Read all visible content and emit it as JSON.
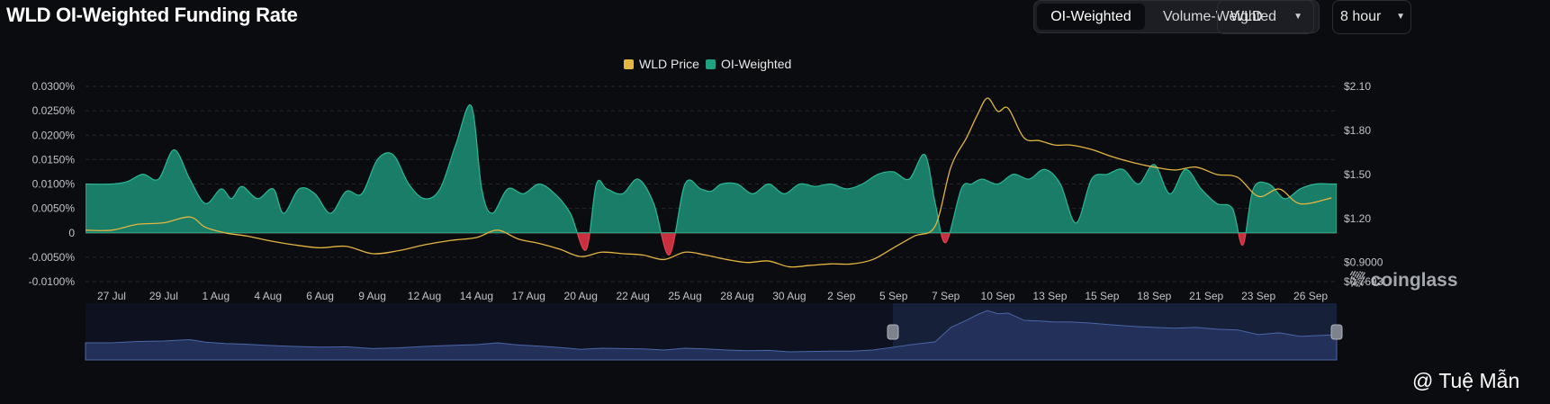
{
  "header": {
    "title": "WLD OI-Weighted Funding Rate"
  },
  "controls": {
    "weighting_options": [
      "OI-Weighted",
      "Volume-Weighted"
    ],
    "weighting_selected": "OI-Weighted",
    "symbol": "WLD",
    "interval": "8 hour",
    "dropdown_icon": "chevron-down-icon"
  },
  "watermark": "coinglass",
  "credit": "@ Tuệ Mẫn",
  "colors": {
    "price": "#e3b541",
    "positive": "#1fa080",
    "negative": "#e2404f",
    "background": "#0b0c0f",
    "navigator": "#4b67a8"
  },
  "chart_data": {
    "type": "area",
    "legend": [
      {
        "name": "WLD Price",
        "color": "#e3b541"
      },
      {
        "name": "OI-Weighted",
        "color": "#1fa080"
      }
    ],
    "legend_position": "top-center",
    "x_labels": [
      "27 Jul",
      "29 Jul",
      "1 Aug",
      "4 Aug",
      "6 Aug",
      "9 Aug",
      "12 Aug",
      "14 Aug",
      "17 Aug",
      "20 Aug",
      "22 Aug",
      "25 Aug",
      "28 Aug",
      "30 Aug",
      "2 Sep",
      "5 Sep",
      "7 Sep",
      "10 Sep",
      "13 Sep",
      "15 Sep",
      "18 Sep",
      "21 Sep",
      "23 Sep",
      "26 Sep"
    ],
    "y_left_ticks": [
      "0.0300%",
      "0.0250%",
      "0.0200%",
      "0.0150%",
      "0.0100%",
      "0.0050%",
      "0",
      "-0.0050%",
      "-0.0100%"
    ],
    "y_right_ticks": [
      "$2.10",
      "$1.80",
      "$1.50",
      "$1.20",
      "$0.9000",
      "$0.7693"
    ],
    "ylim_funding_pct": [
      -0.01,
      0.03
    ],
    "ylim_price": [
      0.7693,
      2.1
    ],
    "grid": true,
    "series": [
      {
        "name": "OI-Weighted",
        "unit": "%",
        "x": [
          0,
          0.3,
          0.6,
          0.9,
          1.2,
          1.5,
          1.8,
          2.1,
          2.3,
          2.5,
          2.8,
          3.1,
          3.3,
          3.6,
          3.9,
          4.2,
          4.5,
          4.8,
          5.1,
          5.4,
          5.7,
          6.0,
          6.3,
          6.6,
          6.9,
          7.1,
          7.3,
          7.6,
          7.9,
          8.2,
          8.5,
          8.8,
          9.1,
          9.3,
          9.5,
          9.8,
          10.1,
          10.4,
          10.7,
          11.0,
          11.3,
          11.5,
          11.7,
          12.0,
          12.3,
          12.6,
          12.9,
          13.2,
          13.5,
          13.8,
          14.1,
          14.4,
          14.7,
          15.0,
          15.3,
          15.6,
          15.8,
          16.0,
          16.3,
          16.5,
          16.7,
          17.0,
          17.3,
          17.6,
          17.9,
          18.2,
          18.5,
          18.8,
          19.1,
          19.4,
          19.7,
          20.0,
          20.3,
          20.6,
          20.9,
          21.2,
          21.5,
          21.7,
          21.9,
          22.2,
          22.5,
          22.8,
          23.1,
          23.4
        ],
        "values": [
          0.01,
          0.0105,
          0.012,
          0.011,
          0.017,
          0.011,
          0.006,
          0.009,
          0.007,
          0.0095,
          0.007,
          0.009,
          0.004,
          0.009,
          0.008,
          0.004,
          0.0085,
          0.008,
          0.015,
          0.016,
          0.01,
          0.007,
          0.009,
          0.018,
          0.026,
          0.009,
          0.004,
          0.009,
          0.008,
          0.01,
          0.008,
          0.004,
          -0.0035,
          0.01,
          0.009,
          0.008,
          0.011,
          0.006,
          -0.0045,
          0.01,
          0.009,
          0.0085,
          0.01,
          0.01,
          0.008,
          0.01,
          0.008,
          0.01,
          0.0095,
          0.01,
          0.009,
          0.01,
          0.012,
          0.0125,
          0.011,
          0.016,
          0.006,
          -0.002,
          0.009,
          0.01,
          0.011,
          0.01,
          0.012,
          0.011,
          0.013,
          0.01,
          0.002,
          0.011,
          0.012,
          0.013,
          0.01,
          0.014,
          0.008,
          0.013,
          0.009,
          0.006,
          0.005,
          -0.0025,
          0.009,
          0.01,
          0.007,
          0.009,
          0.01,
          0.01
        ]
      },
      {
        "name": "WLD Price",
        "unit": "$",
        "x": [
          0,
          0.5,
          1.0,
          1.5,
          1.8,
          2.2,
          2.6,
          3.0,
          3.5,
          4.0,
          4.5,
          5.0,
          5.5,
          6.0,
          6.5,
          7.0,
          7.4,
          7.8,
          8.2,
          8.6,
          9.0,
          9.4,
          9.8,
          10.2,
          10.6,
          11.0,
          11.4,
          11.8,
          12.2,
          12.6,
          13.0,
          13.4,
          13.8,
          14.2,
          14.6,
          15.0,
          15.4,
          15.8,
          16.1,
          16.4,
          16.6,
          16.8,
          17.0,
          17.2,
          17.5,
          17.8,
          18.1,
          18.4,
          18.8,
          19.2,
          19.6,
          20.0,
          20.4,
          20.8,
          21.2,
          21.6,
          22.0,
          22.4,
          22.8,
          23.4
        ],
        "values": [
          1.12,
          1.16,
          1.17,
          1.21,
          1.14,
          1.1,
          1.08,
          1.05,
          1.02,
          1.0,
          1.01,
          0.96,
          0.98,
          1.02,
          1.05,
          1.07,
          1.12,
          1.06,
          1.03,
          0.99,
          0.94,
          0.97,
          0.96,
          0.95,
          0.92,
          0.97,
          0.95,
          0.92,
          0.9,
          0.91,
          0.87,
          0.88,
          0.89,
          0.89,
          0.92,
          1.0,
          1.08,
          1.15,
          1.55,
          1.75,
          1.9,
          2.02,
          1.93,
          1.95,
          1.75,
          1.73,
          1.7,
          1.7,
          1.67,
          1.62,
          1.58,
          1.55,
          1.53,
          1.55,
          1.5,
          1.48,
          1.35,
          1.4,
          1.3,
          1.34
        ]
      }
    ]
  }
}
